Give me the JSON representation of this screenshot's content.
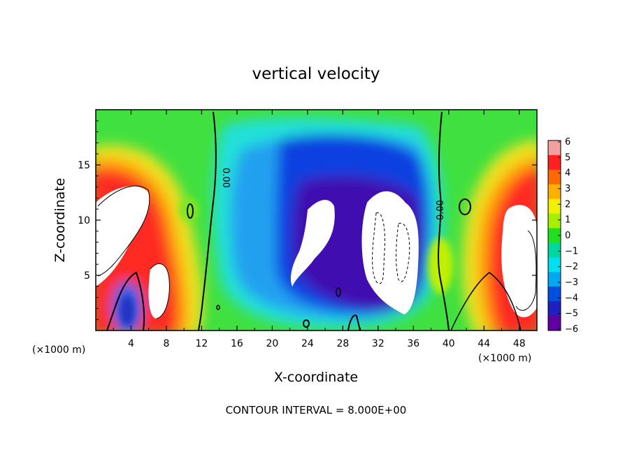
{
  "chart_data": {
    "type": "heatmap",
    "title": "vertical velocity",
    "xlabel": "X-coordinate",
    "ylabel": "Z-coordinate",
    "x_unit_label": "(×1000 m)",
    "xlim": [
      0,
      50
    ],
    "ylim": [
      0,
      20
    ],
    "x_ticks": [
      4,
      8,
      12,
      16,
      20,
      24,
      28,
      32,
      36,
      40,
      44,
      48
    ],
    "y_ticks": [
      5,
      10,
      15
    ],
    "colorbar": {
      "range": [
        -6,
        6
      ],
      "ticks": [
        6,
        5,
        4,
        3,
        2,
        1,
        0,
        -1,
        -2,
        -3,
        -4,
        -5,
        -6
      ],
      "tick_labels": [
        "6",
        "5",
        "4",
        "3",
        "2",
        "1",
        "0",
        "−1",
        "−2",
        "−3",
        "−4",
        "−5",
        "−6"
      ],
      "colors": [
        "#f4a0a0",
        "#ff2020",
        "#ff6a00",
        "#ffb000",
        "#f0f000",
        "#a8f000",
        "#20e020",
        "#00d8a0",
        "#00e0f0",
        "#00a8f0",
        "#0050e0",
        "#2020c0",
        "#6000a0"
      ]
    },
    "contour_labels": [
      "0.00",
      "0.00"
    ],
    "contour_interval_text": "CONTOUR INTERVAL = 8.000E+00",
    "features": [
      {
        "kind": "updraft",
        "x": 1.5,
        "z": 12,
        "value": 6.5
      },
      {
        "kind": "updraft",
        "x": 7,
        "z": 5,
        "value": 6.5
      },
      {
        "kind": "downdraft",
        "x": 3.5,
        "z": 2.2,
        "value": -5
      },
      {
        "kind": "downdraft",
        "x": 24.5,
        "z": 8,
        "value": -6.5
      },
      {
        "kind": "downdraft",
        "x": 33,
        "z": 8,
        "value": -6.5
      },
      {
        "kind": "updraft",
        "x": 48,
        "z": 6,
        "value": 6.5
      }
    ]
  }
}
